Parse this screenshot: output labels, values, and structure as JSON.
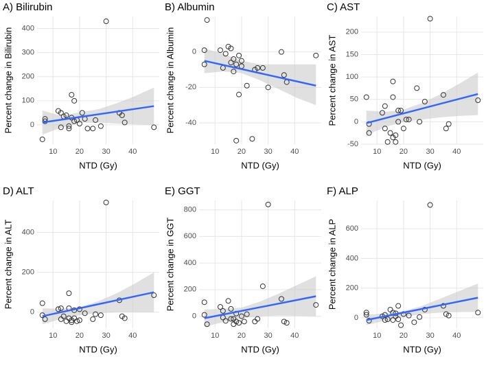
{
  "chart_data": [
    {
      "type": "scatter",
      "title": "A) Bilirubin",
      "x_label": "NTD (Gy)",
      "y_label": "Percent change in Bilirubin",
      "x": [
        6,
        7,
        7,
        12,
        13,
        13,
        14,
        15,
        16,
        16,
        17,
        17,
        18,
        18,
        19,
        20,
        21,
        22,
        23,
        25,
        26,
        28,
        30,
        35,
        36,
        37,
        48
      ],
      "values": [
        -60,
        15,
        25,
        58,
        -10,
        50,
        35,
        40,
        -15,
        -5,
        30,
        125,
        100,
        15,
        20,
        5,
        50,
        25,
        -15,
        -15,
        20,
        -5,
        430,
        50,
        40,
        10,
        -10
      ],
      "fit_x": [
        6,
        48
      ],
      "fit_values": [
        10,
        78
      ],
      "band_x": [
        6,
        13,
        20,
        27,
        34,
        41,
        48
      ],
      "band_lower": [
        -40,
        -12,
        8,
        10,
        5,
        2,
        0
      ],
      "band_upper": [
        60,
        38,
        52,
        65,
        90,
        120,
        155
      ],
      "xlim": [
        4,
        50
      ],
      "ylim": [
        -80,
        450
      ],
      "xticks": [
        10,
        20,
        30,
        40
      ],
      "yticks": [
        0,
        100,
        200,
        300,
        400
      ],
      "grid": true,
      "point_color": "#333333",
      "line_color": "#3366ff",
      "band_color": "#cccccc"
    },
    {
      "type": "scatter",
      "title": "B) Albumin",
      "x_label": "NTD (Gy)",
      "y_label": "Percent change in Albumin",
      "x": [
        6,
        6,
        7,
        12,
        13,
        14,
        15,
        16,
        16,
        17,
        17,
        18,
        18,
        19,
        19,
        20,
        20,
        22,
        24,
        25,
        26,
        28,
        30,
        35,
        36,
        37,
        48
      ],
      "values": [
        1,
        -7,
        18,
        1,
        -9,
        -1,
        3,
        2,
        -6,
        -4,
        -11,
        -50,
        -7,
        -2,
        -24,
        -5,
        -8,
        -19,
        -49,
        -10,
        -9,
        -9,
        -20,
        0,
        -13,
        -17,
        -2
      ],
      "fit_x": [
        6,
        48
      ],
      "fit_values": [
        -5,
        -19
      ],
      "band_x": [
        6,
        13,
        20,
        27,
        34,
        41,
        48
      ],
      "band_lower": [
        -12,
        -11,
        -12,
        -16,
        -21,
        -26,
        -30
      ],
      "band_upper": [
        2,
        -1,
        -5,
        -7,
        -7,
        -7,
        -7
      ],
      "xlim": [
        4,
        50
      ],
      "ylim": [
        -52,
        20
      ],
      "xticks": [
        10,
        20,
        30,
        40
      ],
      "yticks": [
        -40,
        -20,
        0
      ],
      "grid": true,
      "point_color": "#333333",
      "line_color": "#3366ff",
      "band_color": "#cccccc"
    },
    {
      "type": "scatter",
      "title": "C) AST",
      "x_label": "NTD (Gy)",
      "y_label": "Percent change in AST",
      "x": [
        6,
        7,
        7,
        12,
        13,
        13,
        14,
        15,
        16,
        16,
        16,
        17,
        17,
        18,
        18,
        19,
        20,
        21,
        22,
        25,
        26,
        28,
        30,
        35,
        36,
        37,
        48
      ],
      "values": [
        55,
        -5,
        -25,
        20,
        -15,
        35,
        -45,
        -25,
        90,
        55,
        -35,
        -30,
        -45,
        25,
        0,
        25,
        -15,
        5,
        5,
        75,
        0,
        45,
        230,
        60,
        -15,
        -5,
        48
      ],
      "fit_x": [
        6,
        48
      ],
      "fit_values": [
        -3,
        62
      ],
      "band_x": [
        6,
        13,
        20,
        27,
        34,
        41,
        48
      ],
      "band_lower": [
        -30,
        -12,
        0,
        5,
        10,
        13,
        15
      ],
      "band_upper": [
        25,
        22,
        27,
        42,
        62,
        85,
        110
      ],
      "xlim": [
        4,
        50
      ],
      "ylim": [
        -50,
        235
      ],
      "xticks": [
        10,
        20,
        30,
        40
      ],
      "yticks": [
        -50,
        0,
        50,
        100,
        150,
        200
      ],
      "grid": true,
      "point_color": "#333333",
      "line_color": "#3366ff",
      "band_color": "#cccccc"
    },
    {
      "type": "scatter",
      "title": "D) ALT",
      "x_label": "NTD (Gy)",
      "y_label": "Percent change in ALT",
      "x": [
        6,
        6,
        7,
        12,
        13,
        13,
        14,
        15,
        16,
        16,
        16,
        17,
        17,
        18,
        18,
        19,
        20,
        20,
        22,
        25,
        26,
        28,
        30,
        35,
        36,
        37,
        48
      ],
      "values": [
        45,
        -15,
        -35,
        15,
        -35,
        20,
        -20,
        -45,
        95,
        20,
        -30,
        -50,
        -40,
        10,
        -30,
        -45,
        15,
        -40,
        -5,
        -35,
        -10,
        -15,
        550,
        60,
        -20,
        -30,
        85
      ],
      "fit_x": [
        6,
        48
      ],
      "fit_values": [
        -20,
        100
      ],
      "band_x": [
        6,
        13,
        20,
        27,
        34,
        41,
        48
      ],
      "band_lower": [
        -60,
        -35,
        -15,
        -5,
        0,
        0,
        0
      ],
      "band_upper": [
        20,
        17,
        25,
        55,
        95,
        145,
        200
      ],
      "xlim": [
        4,
        50
      ],
      "ylim": [
        -80,
        560
      ],
      "xticks": [
        10,
        20,
        30,
        40
      ],
      "yticks": [
        0,
        200,
        400
      ],
      "grid": true,
      "point_color": "#333333",
      "line_color": "#3366ff",
      "band_color": "#cccccc"
    },
    {
      "type": "scatter",
      "title": "E) GGT",
      "x_label": "NTD (Gy)",
      "y_label": "Percent change in GGT",
      "x": [
        6,
        6,
        7,
        12,
        13,
        13,
        14,
        15,
        16,
        16,
        17,
        17,
        18,
        18,
        19,
        20,
        21,
        22,
        25,
        26,
        28,
        30,
        35,
        36,
        37,
        48
      ],
      "values": [
        105,
        10,
        -60,
        70,
        -10,
        40,
        -35,
        115,
        55,
        -20,
        -60,
        -20,
        20,
        -40,
        -50,
        0,
        -40,
        15,
        -40,
        -20,
        225,
        840,
        130,
        -40,
        -50,
        85
      ],
      "fit_x": [
        6,
        48
      ],
      "fit_values": [
        -15,
        150
      ],
      "band_x": [
        6,
        13,
        20,
        27,
        34,
        41,
        48
      ],
      "band_lower": [
        -80,
        -45,
        -15,
        0,
        5,
        3,
        0
      ],
      "band_upper": [
        50,
        55,
        65,
        110,
        170,
        235,
        300
      ],
      "xlim": [
        4,
        50
      ],
      "ylim": [
        -90,
        870
      ],
      "xticks": [
        10,
        20,
        30,
        40
      ],
      "yticks": [
        0,
        200,
        400,
        600,
        800
      ],
      "grid": true,
      "point_color": "#333333",
      "line_color": "#3366ff",
      "band_color": "#cccccc"
    },
    {
      "type": "scatter",
      "title": "F) ALP",
      "x_label": "NTD (Gy)",
      "y_label": "Percent change in ALP",
      "x": [
        6,
        6,
        7,
        12,
        13,
        13,
        14,
        15,
        16,
        16,
        17,
        17,
        18,
        18,
        19,
        20,
        22,
        24,
        26,
        28,
        30,
        35,
        36,
        37,
        48
      ],
      "values": [
        35,
        20,
        -20,
        10,
        -15,
        20,
        -10,
        55,
        35,
        -15,
        30,
        10,
        80,
        -10,
        -50,
        25,
        15,
        -30,
        5,
        55,
        760,
        80,
        25,
        15,
        35
      ],
      "fit_x": [
        6,
        48
      ],
      "fit_values": [
        -15,
        135
      ],
      "band_x": [
        6,
        13,
        20,
        27,
        34,
        41,
        48
      ],
      "band_lower": [
        -50,
        -20,
        5,
        25,
        35,
        38,
        40
      ],
      "band_upper": [
        20,
        30,
        45,
        80,
        130,
        180,
        230
      ],
      "xlim": [
        4,
        50
      ],
      "ylim": [
        -70,
        790
      ],
      "xticks": [
        10,
        20,
        30,
        40
      ],
      "yticks": [
        0,
        200,
        400,
        600
      ],
      "grid": true,
      "point_color": "#333333",
      "line_color": "#3366ff",
      "band_color": "#cccccc"
    }
  ]
}
